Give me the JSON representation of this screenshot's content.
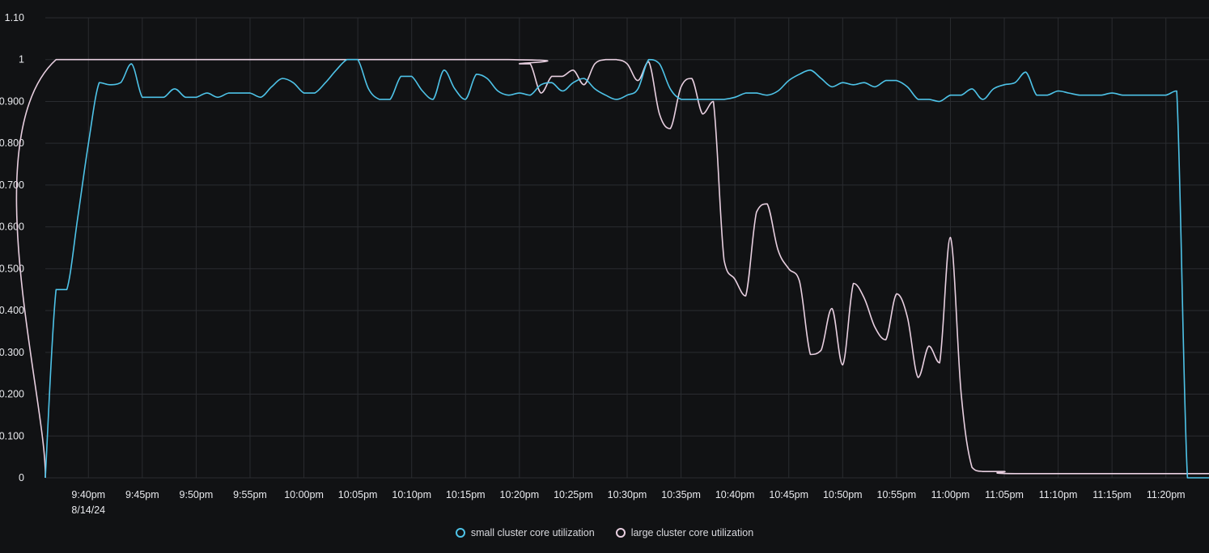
{
  "chart_data": {
    "type": "line",
    "grid": true,
    "legend_position": "bottom-center",
    "ylim": [
      0,
      1.1
    ],
    "yticks": [
      {
        "value": 0,
        "label": "0"
      },
      {
        "value": 0.1,
        "label": "0.100"
      },
      {
        "value": 0.2,
        "label": "0.200"
      },
      {
        "value": 0.3,
        "label": "0.300"
      },
      {
        "value": 0.4,
        "label": "0.400"
      },
      {
        "value": 0.5,
        "label": "0.500"
      },
      {
        "value": 0.6,
        "label": "0.600"
      },
      {
        "value": 0.7,
        "label": "0.700"
      },
      {
        "value": 0.8,
        "label": "0.800"
      },
      {
        "value": 0.9,
        "label": "0.900"
      },
      {
        "value": 1.0,
        "label": "1"
      },
      {
        "value": 1.1,
        "label": "1.10"
      }
    ],
    "xlim": [
      "9:36pm",
      "11:24pm"
    ],
    "xticks": [
      {
        "value": "9:40pm",
        "label": "9:40pm",
        "sublabel": "8/14/24"
      },
      {
        "value": "9:45pm",
        "label": "9:45pm"
      },
      {
        "value": "9:50pm",
        "label": "9:50pm"
      },
      {
        "value": "9:55pm",
        "label": "9:55pm"
      },
      {
        "value": "10:00pm",
        "label": "10:00pm"
      },
      {
        "value": "10:05pm",
        "label": "10:05pm"
      },
      {
        "value": "10:10pm",
        "label": "10:10pm"
      },
      {
        "value": "10:15pm",
        "label": "10:15pm"
      },
      {
        "value": "10:20pm",
        "label": "10:20pm"
      },
      {
        "value": "10:25pm",
        "label": "10:25pm"
      },
      {
        "value": "10:30pm",
        "label": "10:30pm"
      },
      {
        "value": "10:35pm",
        "label": "10:35pm"
      },
      {
        "value": "10:40pm",
        "label": "10:40pm"
      },
      {
        "value": "10:45pm",
        "label": "10:45pm"
      },
      {
        "value": "10:50pm",
        "label": "10:50pm"
      },
      {
        "value": "10:55pm",
        "label": "10:55pm"
      },
      {
        "value": "11:00pm",
        "label": "11:00pm"
      },
      {
        "value": "11:05pm",
        "label": "11:05pm"
      },
      {
        "value": "11:10pm",
        "label": "11:10pm"
      },
      {
        "value": "11:15pm",
        "label": "11:15pm"
      },
      {
        "value": "11:20pm",
        "label": "11:20pm"
      }
    ],
    "series": [
      {
        "name": "small cluster core utilization",
        "color": "#4ec3e8",
        "points": [
          [
            "9:36pm",
            0
          ],
          [
            "9:37pm",
            0.45
          ],
          [
            "9:38pm",
            0.45
          ],
          [
            "9:39pm",
            0.62
          ],
          [
            "9:40pm",
            0.8
          ],
          [
            "9:41pm",
            0.945
          ],
          [
            "9:42pm",
            0.94
          ],
          [
            "9:43pm",
            0.945
          ],
          [
            "9:44pm",
            0.99
          ],
          [
            "9:45pm",
            0.91
          ],
          [
            "9:46pm",
            0.91
          ],
          [
            "9:47pm",
            0.91
          ],
          [
            "9:48pm",
            0.93
          ],
          [
            "9:49pm",
            0.91
          ],
          [
            "9:50pm",
            0.91
          ],
          [
            "9:51pm",
            0.92
          ],
          [
            "9:52pm",
            0.91
          ],
          [
            "9:53pm",
            0.92
          ],
          [
            "9:54pm",
            0.92
          ],
          [
            "9:55pm",
            0.92
          ],
          [
            "9:56pm",
            0.91
          ],
          [
            "9:57pm",
            0.935
          ],
          [
            "9:58pm",
            0.955
          ],
          [
            "9:59pm",
            0.945
          ],
          [
            "10:00pm",
            0.92
          ],
          [
            "10:01pm",
            0.92
          ],
          [
            "10:02pm",
            0.945
          ],
          [
            "10:03pm",
            0.975
          ],
          [
            "10:04pm",
            1.0
          ],
          [
            "10:05pm",
            1.0
          ],
          [
            "10:06pm",
            0.93
          ],
          [
            "10:07pm",
            0.905
          ],
          [
            "10:08pm",
            0.905
          ],
          [
            "10:09pm",
            0.96
          ],
          [
            "10:10pm",
            0.96
          ],
          [
            "10:11pm",
            0.925
          ],
          [
            "10:12pm",
            0.905
          ],
          [
            "10:13pm",
            0.975
          ],
          [
            "10:14pm",
            0.93
          ],
          [
            "10:15pm",
            0.905
          ],
          [
            "10:16pm",
            0.965
          ],
          [
            "10:17pm",
            0.955
          ],
          [
            "10:18pm",
            0.925
          ],
          [
            "10:19pm",
            0.915
          ],
          [
            "10:20pm",
            0.92
          ],
          [
            "10:21pm",
            0.915
          ],
          [
            "10:22pm",
            0.94
          ],
          [
            "10:23pm",
            0.945
          ],
          [
            "10:24pm",
            0.925
          ],
          [
            "10:25pm",
            0.945
          ],
          [
            "10:26pm",
            0.955
          ],
          [
            "10:27pm",
            0.93
          ],
          [
            "10:28pm",
            0.915
          ],
          [
            "10:29pm",
            0.905
          ],
          [
            "10:30pm",
            0.915
          ],
          [
            "10:31pm",
            0.93
          ],
          [
            "10:32pm",
            1.0
          ],
          [
            "10:33pm",
            0.99
          ],
          [
            "10:34pm",
            0.93
          ],
          [
            "10:35pm",
            0.905
          ],
          [
            "10:36pm",
            0.905
          ],
          [
            "10:37pm",
            0.905
          ],
          [
            "10:38pm",
            0.905
          ],
          [
            "10:39pm",
            0.905
          ],
          [
            "10:40pm",
            0.91
          ],
          [
            "10:41pm",
            0.92
          ],
          [
            "10:42pm",
            0.92
          ],
          [
            "10:43pm",
            0.915
          ],
          [
            "10:44pm",
            0.925
          ],
          [
            "10:45pm",
            0.95
          ],
          [
            "10:46pm",
            0.965
          ],
          [
            "10:47pm",
            0.975
          ],
          [
            "10:48pm",
            0.955
          ],
          [
            "10:49pm",
            0.935
          ],
          [
            "10:50pm",
            0.945
          ],
          [
            "10:51pm",
            0.94
          ],
          [
            "10:52pm",
            0.945
          ],
          [
            "10:53pm",
            0.935
          ],
          [
            "10:54pm",
            0.95
          ],
          [
            "10:55pm",
            0.95
          ],
          [
            "10:56pm",
            0.935
          ],
          [
            "10:57pm",
            0.905
          ],
          [
            "10:58pm",
            0.905
          ],
          [
            "10:59pm",
            0.9
          ],
          [
            "11:00pm",
            0.915
          ],
          [
            "11:01pm",
            0.915
          ],
          [
            "11:02pm",
            0.93
          ],
          [
            "11:03pm",
            0.905
          ],
          [
            "11:04pm",
            0.93
          ],
          [
            "11:05pm",
            0.94
          ],
          [
            "11:06pm",
            0.945
          ],
          [
            "11:07pm",
            0.97
          ],
          [
            "11:08pm",
            0.915
          ],
          [
            "11:09pm",
            0.915
          ],
          [
            "11:10pm",
            0.925
          ],
          [
            "11:11pm",
            0.92
          ],
          [
            "11:12pm",
            0.915
          ],
          [
            "11:13pm",
            0.915
          ],
          [
            "11:14pm",
            0.915
          ],
          [
            "11:15pm",
            0.92
          ],
          [
            "11:16pm",
            0.915
          ],
          [
            "11:17pm",
            0.915
          ],
          [
            "11:18pm",
            0.915
          ],
          [
            "11:19pm",
            0.915
          ],
          [
            "11:20pm",
            0.915
          ],
          [
            "11:21pm",
            0.925
          ],
          [
            "11:22pm",
            0.0
          ],
          [
            "11:23pm",
            0.0
          ],
          [
            "11:24pm",
            0.0
          ]
        ]
      },
      {
        "name": "large cluster core utilization",
        "color": "#e8cfe0",
        "points": [
          [
            "9:36pm",
            0
          ],
          [
            "9:37pm",
            1.0
          ],
          [
            "10:19pm",
            1.0
          ],
          [
            "10:20pm",
            0.99
          ],
          [
            "10:21pm",
            0.99
          ],
          [
            "10:22pm",
            0.92
          ],
          [
            "10:23pm",
            0.96
          ],
          [
            "10:24pm",
            0.96
          ],
          [
            "10:25pm",
            0.975
          ],
          [
            "10:26pm",
            0.94
          ],
          [
            "10:27pm",
            0.99
          ],
          [
            "10:28pm",
            1.0
          ],
          [
            "10:29pm",
            1.0
          ],
          [
            "10:30pm",
            0.99
          ],
          [
            "10:31pm",
            0.95
          ],
          [
            "10:32pm",
            0.995
          ],
          [
            "10:33pm",
            0.87
          ],
          [
            "10:34pm",
            0.835
          ],
          [
            "10:35pm",
            0.935
          ],
          [
            "10:36pm",
            0.955
          ],
          [
            "10:37pm",
            0.87
          ],
          [
            "10:38pm",
            0.9
          ],
          [
            "10:39pm",
            0.52
          ],
          [
            "10:40pm",
            0.475
          ],
          [
            "10:41pm",
            0.435
          ],
          [
            "10:42pm",
            0.635
          ],
          [
            "10:43pm",
            0.655
          ],
          [
            "10:44pm",
            0.545
          ],
          [
            "10:45pm",
            0.5
          ],
          [
            "10:46pm",
            0.47
          ],
          [
            "10:47pm",
            0.295
          ],
          [
            "10:48pm",
            0.305
          ],
          [
            "10:49pm",
            0.405
          ],
          [
            "10:50pm",
            0.27
          ],
          [
            "10:51pm",
            0.465
          ],
          [
            "10:52pm",
            0.43
          ],
          [
            "10:53pm",
            0.36
          ],
          [
            "10:54pm",
            0.33
          ],
          [
            "10:55pm",
            0.44
          ],
          [
            "10:56pm",
            0.385
          ],
          [
            "10:57pm",
            0.24
          ],
          [
            "10:58pm",
            0.315
          ],
          [
            "10:59pm",
            0.275
          ],
          [
            "11:00pm",
            0.575
          ],
          [
            "11:01pm",
            0.2
          ],
          [
            "11:02pm",
            0.025
          ],
          [
            "11:03pm",
            0.015
          ],
          [
            "11:05pm",
            0.015
          ],
          [
            "11:06pm",
            0.01
          ],
          [
            "11:24pm",
            0.01
          ]
        ]
      }
    ]
  }
}
